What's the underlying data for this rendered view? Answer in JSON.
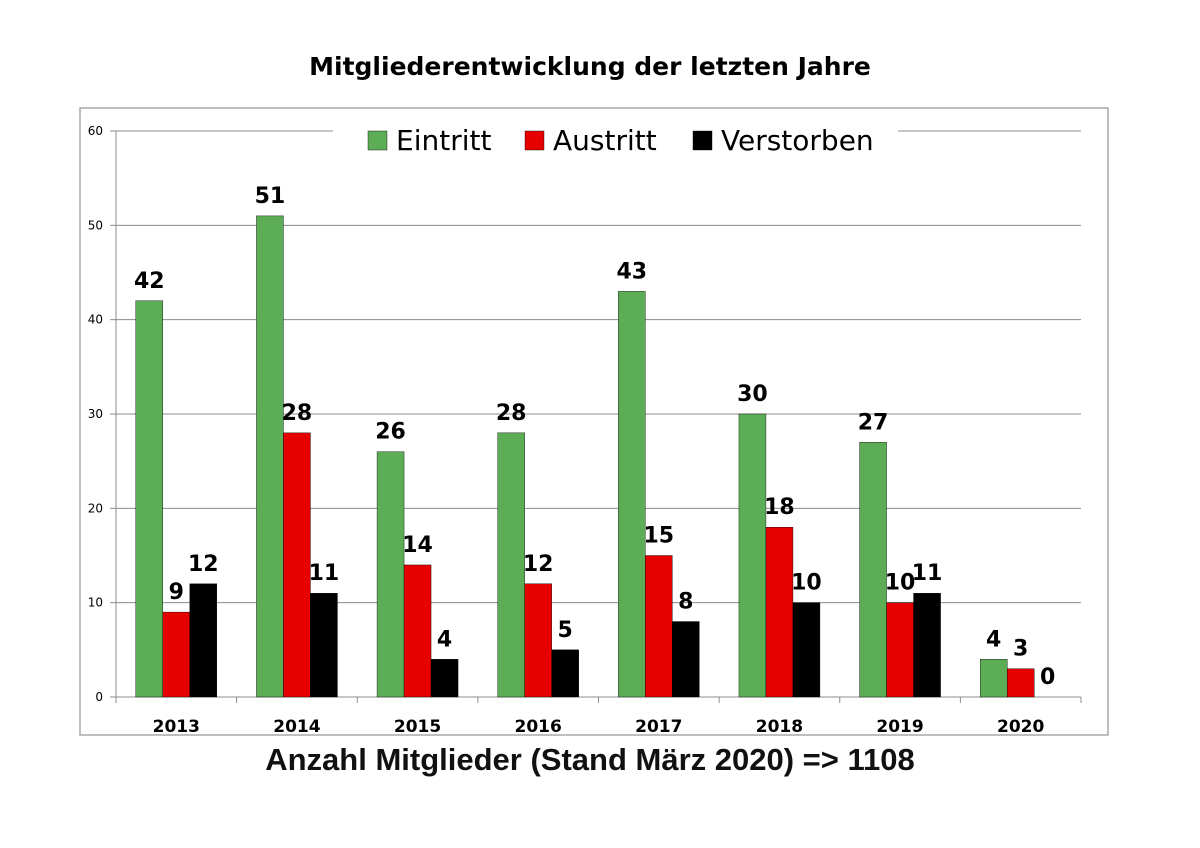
{
  "chart_data": {
    "type": "bar",
    "title": "Mitgliederentwicklung  der letzten Jahre",
    "categories": [
      "2013",
      "2014",
      "2015",
      "2016",
      "2017",
      "2018",
      "2019",
      "2020"
    ],
    "series": [
      {
        "name": "Eintritt",
        "color": "#5cad55",
        "values": [
          42,
          51,
          26,
          28,
          43,
          30,
          27,
          4
        ]
      },
      {
        "name": "Austritt",
        "color": "#e60000",
        "values": [
          9,
          28,
          14,
          12,
          15,
          18,
          10,
          3
        ]
      },
      {
        "name": "Verstorben",
        "color": "#000000",
        "values": [
          12,
          11,
          4,
          5,
          8,
          10,
          11,
          0
        ]
      }
    ],
    "ylim": [
      0,
      60
    ],
    "yticks": [
      "0",
      "10",
      "20",
      "30",
      "40",
      "50",
      "60"
    ],
    "grid": true,
    "legend": "top-center",
    "data_labels": true
  },
  "footer": "Anzahl Mitglieder (Stand März 2020) => 1108"
}
